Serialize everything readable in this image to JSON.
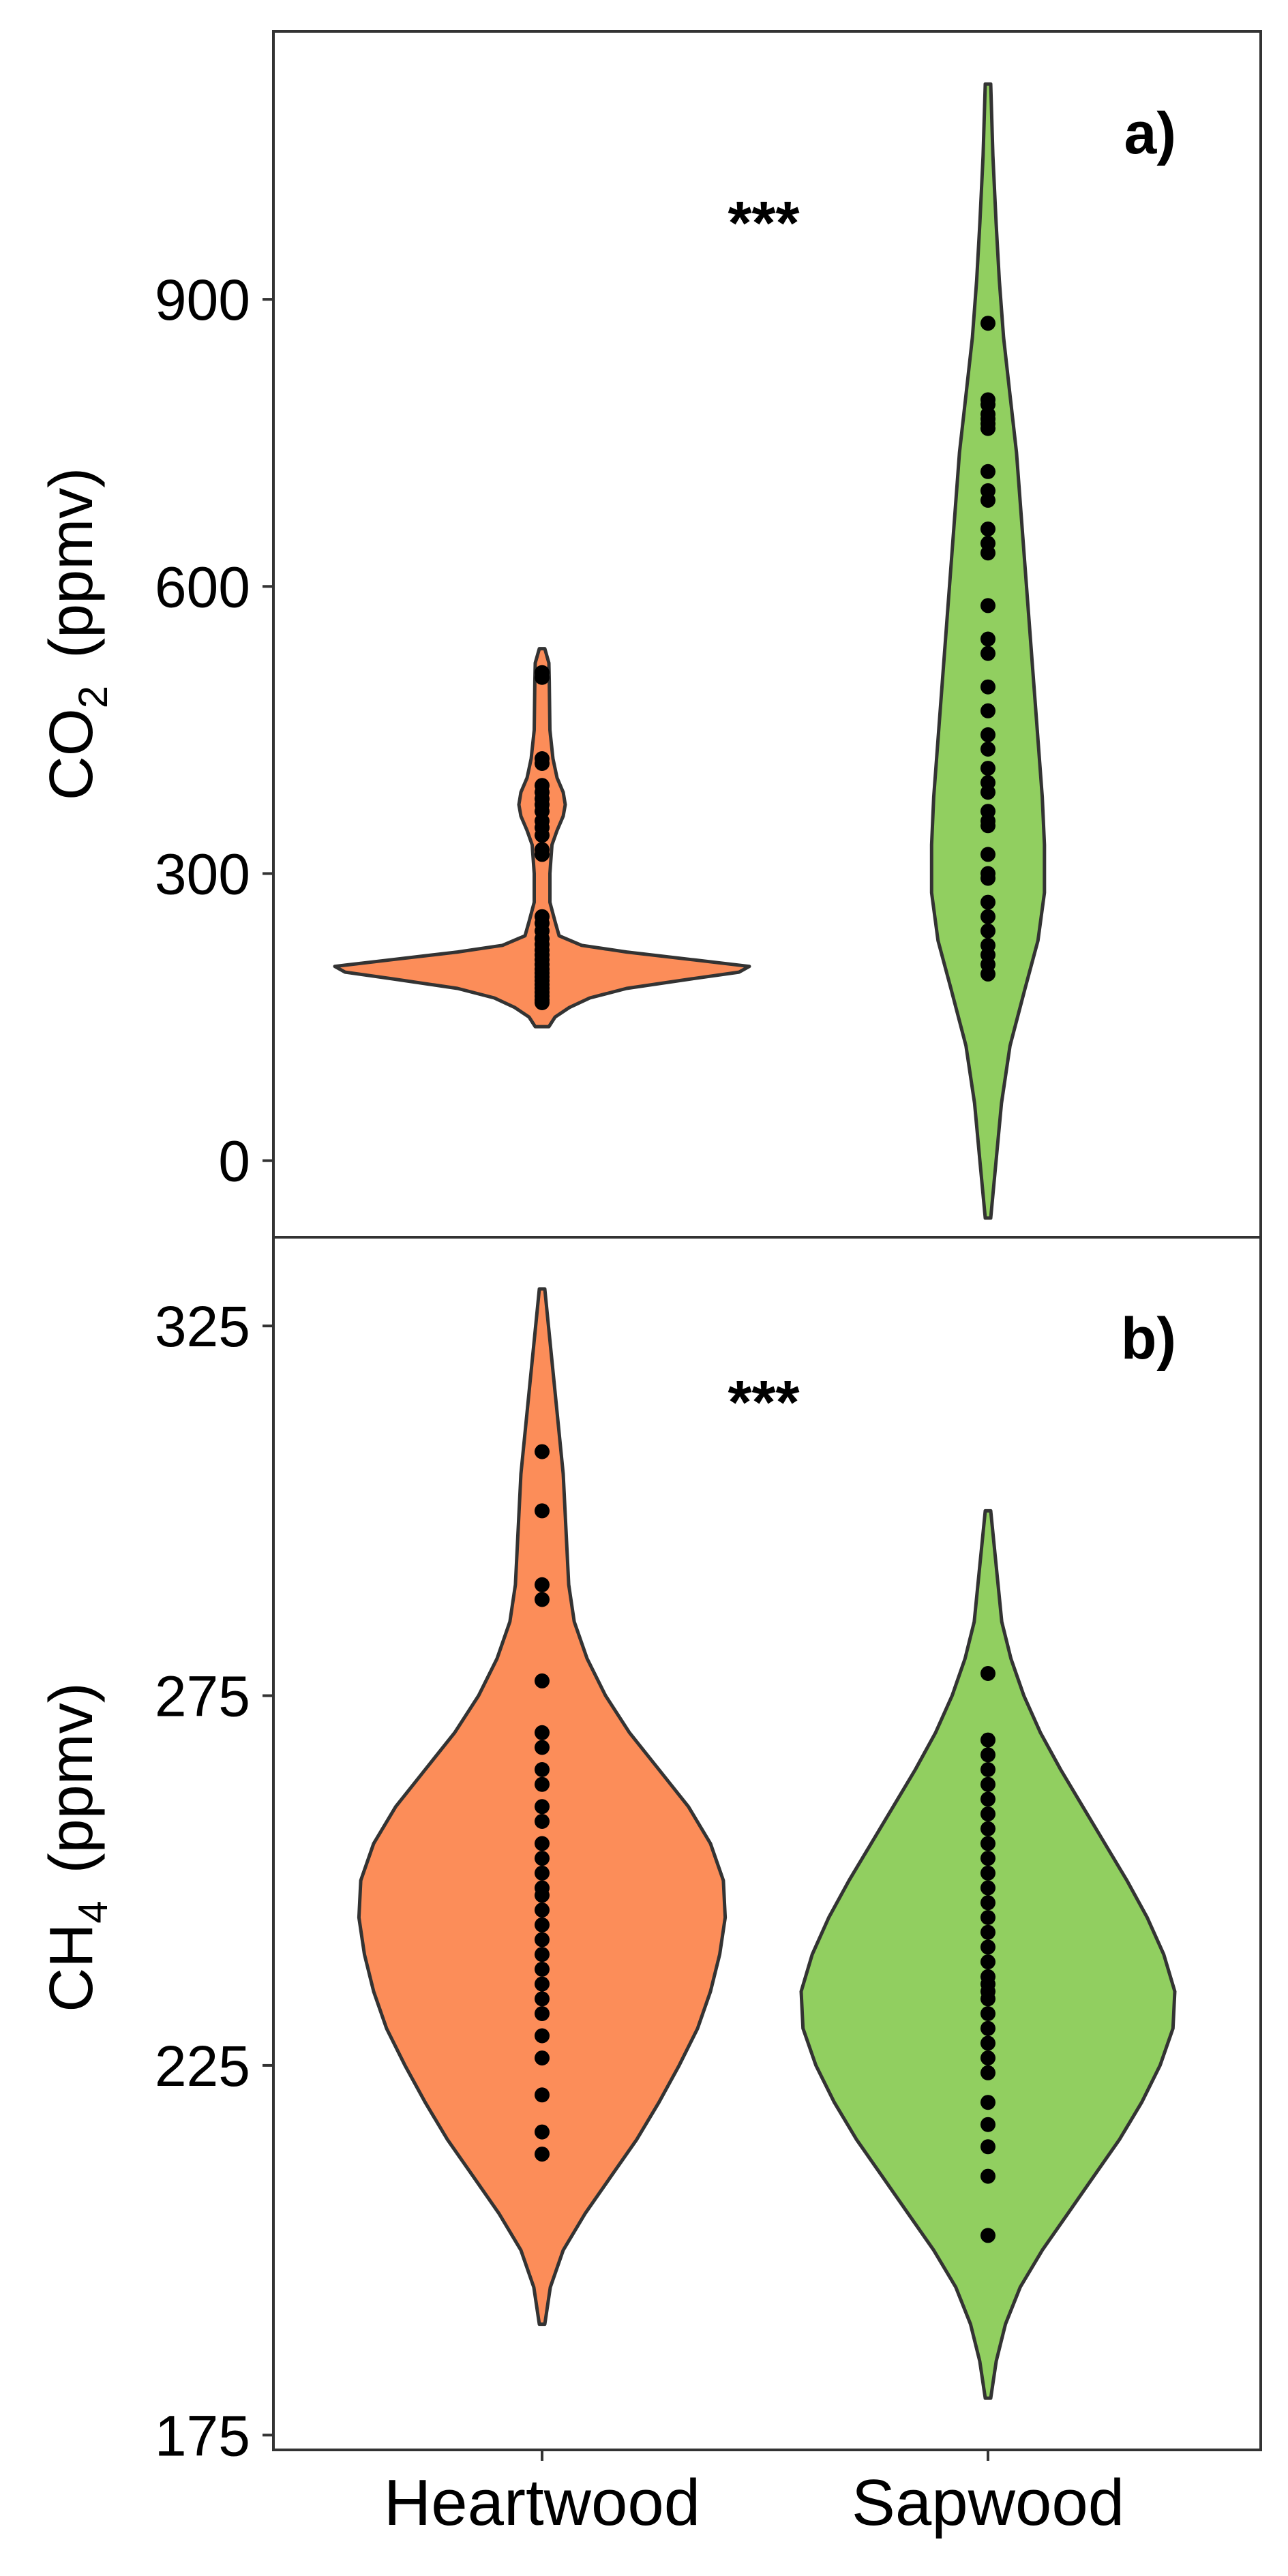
{
  "chart_data": [
    {
      "type": "violin",
      "panel_label": "a)",
      "significance": "***",
      "ylabel": "CO",
      "ylabel_subscript": "2",
      "ylabel_unit": "(ppmv)",
      "yticks": [
        0,
        300,
        600,
        900
      ],
      "ylim": [
        -80,
        1180
      ],
      "categories": [
        "Heartwood",
        "Sapwood"
      ],
      "series": [
        {
          "color": "#FC8D59",
          "violin_range": [
            140,
            535
          ],
          "density": [
            [
              140,
              0.02
            ],
            [
              150,
              0.05
            ],
            [
              160,
              0.12
            ],
            [
              170,
              0.22
            ],
            [
              180,
              0.4
            ],
            [
              190,
              0.72
            ],
            [
              197,
              0.95
            ],
            [
              203,
              1.0
            ],
            [
              210,
              0.72
            ],
            [
              218,
              0.4
            ],
            [
              225,
              0.18
            ],
            [
              235,
              0.07
            ],
            [
              250,
              0.05
            ],
            [
              270,
              0.025
            ],
            [
              300,
              0.025
            ],
            [
              330,
              0.035
            ],
            [
              345,
              0.06
            ],
            [
              360,
              0.09
            ],
            [
              372,
              0.1
            ],
            [
              385,
              0.09
            ],
            [
              400,
              0.06
            ],
            [
              420,
              0.04
            ],
            [
              450,
              0.025
            ],
            [
              500,
              0.022
            ],
            [
              520,
              0.02
            ],
            [
              535,
              0.0
            ]
          ],
          "points": [
            510,
            505,
            420,
            415,
            392,
            385,
            378,
            372,
            365,
            355,
            348,
            340,
            325,
            320,
            255,
            248,
            240,
            232,
            226,
            220,
            215,
            210,
            205,
            200,
            196,
            192,
            188,
            184,
            180,
            176,
            172,
            168,
            165
          ]
        },
        {
          "color": "#91CF60",
          "violin_range": [
            -60,
            1125
          ],
          "density": [
            [
              -60,
              0.0
            ],
            [
              0,
              0.025
            ],
            [
              60,
              0.05
            ],
            [
              120,
              0.09
            ],
            [
              180,
              0.16
            ],
            [
              230,
              0.22
            ],
            [
              280,
              0.25
            ],
            [
              330,
              0.25
            ],
            [
              380,
              0.24
            ],
            [
              440,
              0.22
            ],
            [
              500,
              0.2
            ],
            [
              560,
              0.18
            ],
            [
              620,
              0.16
            ],
            [
              680,
              0.14
            ],
            [
              740,
              0.12
            ],
            [
              800,
              0.09
            ],
            [
              860,
              0.06
            ],
            [
              920,
              0.04
            ],
            [
              980,
              0.025
            ],
            [
              1050,
              0.01
            ],
            [
              1125,
              0.0
            ]
          ],
          "points": [
            875,
            795,
            790,
            780,
            775,
            770,
            765,
            720,
            700,
            690,
            660,
            645,
            635,
            580,
            545,
            530,
            495,
            470,
            445,
            430,
            410,
            395,
            385,
            365,
            355,
            350,
            320,
            300,
            295,
            270,
            255,
            240,
            225,
            215,
            205,
            195
          ]
        }
      ]
    },
    {
      "type": "violin",
      "panel_label": "b)",
      "significance": "***",
      "ylabel": "CH",
      "ylabel_subscript": "4",
      "ylabel_unit": "(ppmv)",
      "yticks": [
        175,
        225,
        275,
        325
      ],
      "ylim": [
        173,
        337
      ],
      "xlabels": [
        "Heartwood",
        "Sapwood"
      ],
      "categories": [
        "Heartwood",
        "Sapwood"
      ],
      "series": [
        {
          "color": "#FC8D59",
          "violin_range": [
            190,
            330
          ],
          "density": [
            [
              190,
              0.0
            ],
            [
              195,
              0.03
            ],
            [
              200,
              0.1
            ],
            [
              205,
              0.22
            ],
            [
              210,
              0.36
            ],
            [
              215,
              0.5
            ],
            [
              220,
              0.62
            ],
            [
              225,
              0.73
            ],
            [
              230,
              0.83
            ],
            [
              235,
              0.9
            ],
            [
              240,
              0.95
            ],
            [
              245,
              0.98
            ],
            [
              250,
              0.97
            ],
            [
              255,
              0.9
            ],
            [
              260,
              0.78
            ],
            [
              265,
              0.62
            ],
            [
              270,
              0.46
            ],
            [
              275,
              0.33
            ],
            [
              280,
              0.23
            ],
            [
              285,
              0.16
            ],
            [
              290,
              0.13
            ],
            [
              295,
              0.12
            ],
            [
              300,
              0.11
            ],
            [
              305,
              0.1
            ],
            [
              310,
              0.08
            ],
            [
              315,
              0.06
            ],
            [
              320,
              0.04
            ],
            [
              325,
              0.02
            ],
            [
              330,
              0.0
            ]
          ],
          "points": [
            308,
            300,
            290,
            288,
            277,
            270,
            268,
            265,
            263,
            260,
            258,
            255,
            253,
            251,
            249,
            248,
            246,
            244,
            242,
            240,
            238,
            236,
            234,
            232,
            229,
            226,
            221,
            216,
            213
          ]
        },
        {
          "color": "#91CF60",
          "violin_range": [
            180,
            300
          ],
          "density": [
            [
              180,
              0.0
            ],
            [
              185,
              0.03
            ],
            [
              190,
              0.08
            ],
            [
              195,
              0.16
            ],
            [
              200,
              0.28
            ],
            [
              205,
              0.42
            ],
            [
              210,
              0.56
            ],
            [
              215,
              0.7
            ],
            [
              220,
              0.82
            ],
            [
              225,
              0.92
            ],
            [
              230,
              0.99
            ],
            [
              235,
              1.0
            ],
            [
              240,
              0.94
            ],
            [
              245,
              0.85
            ],
            [
              250,
              0.74
            ],
            [
              255,
              0.62
            ],
            [
              260,
              0.5
            ],
            [
              265,
              0.38
            ],
            [
              270,
              0.27
            ],
            [
              275,
              0.18
            ],
            [
              280,
              0.11
            ],
            [
              285,
              0.06
            ],
            [
              290,
              0.04
            ],
            [
              295,
              0.02
            ],
            [
              300,
              0.0
            ]
          ],
          "points": [
            278,
            269,
            267,
            265,
            263,
            261,
            259,
            257,
            255,
            253,
            251,
            249,
            247,
            245,
            243,
            241,
            239,
            237,
            236,
            235,
            234,
            232,
            230,
            228,
            226,
            224,
            220,
            217,
            214,
            210,
            202
          ]
        }
      ]
    }
  ]
}
